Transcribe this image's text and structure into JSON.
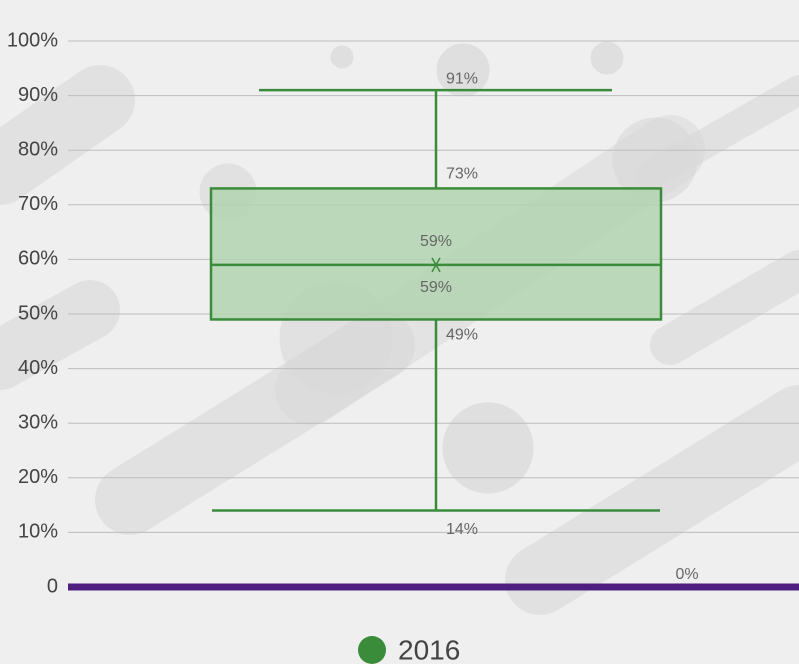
{
  "chart_data": {
    "type": "box",
    "ylim": [
      0,
      100
    ],
    "yticks": [
      0,
      {
        "value": 10,
        "label": "10%"
      },
      {
        "value": 20,
        "label": "20%"
      },
      {
        "value": 30,
        "label": "30%"
      },
      {
        "value": 40,
        "label": "40%"
      },
      {
        "value": 50,
        "label": "50%"
      },
      {
        "value": 60,
        "label": "60%"
      },
      {
        "value": 70,
        "label": "70%"
      },
      {
        "value": 80,
        "label": "80%"
      },
      {
        "value": 90,
        "label": "90%"
      },
      {
        "value": 100,
        "label": "100%"
      }
    ],
    "grid": true,
    "series": [
      {
        "name": "2016",
        "color": "#3a8c3a",
        "fill": "#b2d4b0",
        "min": 14,
        "q1": 49,
        "median": 59,
        "q3": 73,
        "max": 91,
        "mean": 59,
        "value_labels": {
          "min": "14%",
          "q1": "49%",
          "median": "59%",
          "q3": "73%",
          "max": "91%",
          "mean": "59%"
        }
      }
    ],
    "reference_line": {
      "value": 0,
      "value_label": "0%",
      "color": "#4e1f7e"
    },
    "legend": "bottom"
  }
}
